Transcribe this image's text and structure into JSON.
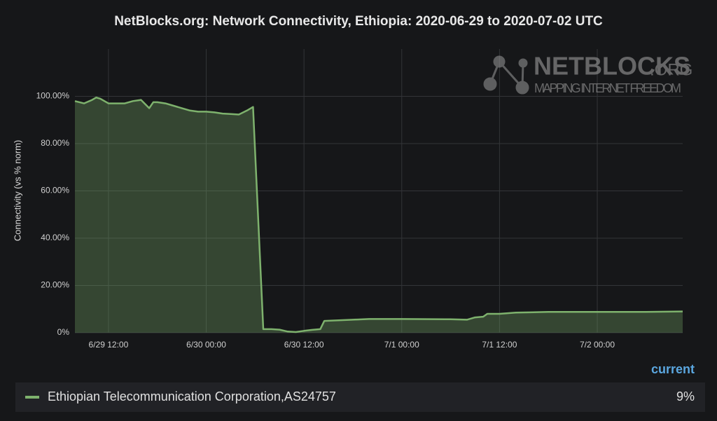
{
  "chart_data": {
    "type": "area",
    "title": "NetBlocks.org: Network Connectivity, Ethiopia: 2020-06-29 to 2020-07-02 UTC",
    "ylabel": "Connectivity (vs % norm)",
    "watermark": {
      "brand": "NETBLOCKS",
      "suffix": ".ORG",
      "tagline": "MAPPING INTERNET FREEDOM"
    },
    "legend_header": "current",
    "grid": true,
    "xlim": [
      "6/29 07:53",
      "7/2 10:29"
    ],
    "xticks": [
      "6/29 12:00",
      "6/30 00:00",
      "6/30 12:00",
      "7/1 00:00",
      "7/1 12:00",
      "7/2 00:00"
    ],
    "ylim": [
      0,
      120
    ],
    "yticks": [
      {
        "value": 0,
        "label": "0%"
      },
      {
        "value": 20,
        "label": "20.00%"
      },
      {
        "value": 40,
        "label": "40.00%"
      },
      {
        "value": 60,
        "label": "60.00%"
      },
      {
        "value": 80,
        "label": "80.00%"
      },
      {
        "value": 100,
        "label": "100.00%"
      }
    ],
    "x": [
      "6/29 07:53",
      "6/29 09:00",
      "6/29 10:00",
      "6/29 10:30",
      "6/29 11:00",
      "6/29 12:00",
      "6/29 13:00",
      "6/29 14:00",
      "6/29 15:00",
      "6/29 16:00",
      "6/29 17:00",
      "6/29 17:30",
      "6/29 18:00",
      "6/29 19:00",
      "6/29 20:00",
      "6/29 21:00",
      "6/29 22:00",
      "6/29 23:00",
      "6/30 00:00",
      "6/30 01:00",
      "6/30 02:00",
      "6/30 03:00",
      "6/30 04:00",
      "6/30 05:00",
      "6/30 05:45",
      "6/30 07:00",
      "6/30 08:00",
      "6/30 09:00",
      "6/30 10:00",
      "6/30 11:00",
      "6/30 12:00",
      "6/30 13:00",
      "6/30 14:00",
      "6/30 14:30",
      "6/30 18:00",
      "6/30 20:00",
      "7/1 00:00",
      "7/1 06:00",
      "7/1 08:00",
      "7/1 09:00",
      "7/1 10:00",
      "7/1 10:30",
      "7/1 12:00",
      "7/1 14:00",
      "7/1 18:00",
      "7/2 00:00",
      "7/2 06:00",
      "7/2 10:29"
    ],
    "series": [
      {
        "name": "Ethiopian Telecommunication Corporation,AS24757",
        "color": "#7eb26d",
        "current": {
          "value": 9,
          "label": "9%"
        },
        "values": [
          98,
          97,
          98.5,
          99.5,
          99,
          97,
          97,
          97,
          98,
          98.5,
          95,
          97.5,
          97.5,
          97,
          96,
          95,
          94,
          93.5,
          93.5,
          93.2,
          92.7,
          92.5,
          92.3,
          94,
          95.5,
          1.5,
          1.5,
          1.3,
          0.5,
          0.3,
          0.8,
          1.2,
          1.5,
          5,
          5.5,
          5.8,
          5.8,
          5.7,
          5.5,
          6.5,
          6.8,
          8,
          8,
          8.5,
          8.8,
          8.8,
          8.8,
          9
        ]
      }
    ]
  }
}
